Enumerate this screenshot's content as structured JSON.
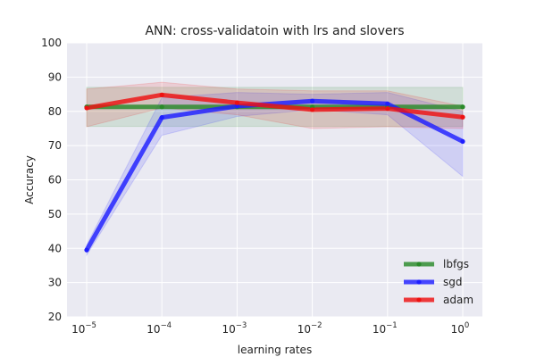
{
  "chart_data": {
    "type": "line",
    "title": "ANN: cross-validatoin with lrs and slovers",
    "xlabel": "learning rates",
    "ylabel": "Accuracy",
    "xscale": "log",
    "x": [
      1e-05,
      0.0001,
      0.001,
      0.01,
      0.1,
      1
    ],
    "x_ticks": [
      {
        "base": "10",
        "exp": "−5"
      },
      {
        "base": "10",
        "exp": "−4"
      },
      {
        "base": "10",
        "exp": "−3"
      },
      {
        "base": "10",
        "exp": "−2"
      },
      {
        "base": "10",
        "exp": "−1"
      },
      {
        "base": "10",
        "exp": "0"
      }
    ],
    "ylim": [
      20,
      100
    ],
    "y_ticks": [
      "20",
      "30",
      "40",
      "50",
      "60",
      "70",
      "80",
      "90",
      "100"
    ],
    "grid": true,
    "legend_position": "lower-right",
    "series": [
      {
        "name": "lbfgs",
        "color": "#2a8a2a",
        "values": [
          81.3,
          81.3,
          81.3,
          81.3,
          81.3,
          81.3
        ],
        "lower": [
          75.6,
          75.6,
          75.6,
          75.6,
          75.6,
          75.6
        ],
        "upper": [
          87.0,
          87.0,
          87.0,
          87.0,
          87.0,
          87.0
        ]
      },
      {
        "name": "sgd",
        "color": "#1f1fff",
        "values": [
          39.5,
          78.2,
          81.5,
          83.0,
          82.2,
          71.2
        ],
        "lower": [
          38.0,
          73.0,
          78.5,
          80.5,
          79.0,
          61.0
        ],
        "upper": [
          41.0,
          84.0,
          85.5,
          85.0,
          85.5,
          80.0
        ]
      },
      {
        "name": "adam",
        "color": "#ee1111",
        "values": [
          81.0,
          84.8,
          82.5,
          80.5,
          80.8,
          78.3
        ],
        "lower": [
          75.5,
          81.0,
          79.0,
          75.0,
          75.5,
          75.0
        ],
        "upper": [
          86.5,
          88.5,
          86.5,
          86.0,
          86.0,
          81.5
        ]
      }
    ]
  }
}
